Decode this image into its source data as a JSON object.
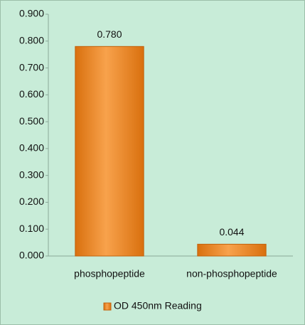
{
  "chart_data": {
    "type": "bar",
    "categories": [
      "phosphopeptide",
      "non-phosphopeptide"
    ],
    "series": [
      {
        "name": "OD 450nm Reading",
        "color": "#f28a1e",
        "values": [
          0.78,
          0.044
        ],
        "value_labels": [
          "0.780",
          "0.044"
        ]
      }
    ],
    "ylim": [
      0,
      0.9
    ],
    "yticks": [
      {
        "value": 0,
        "label": "0.000"
      },
      {
        "value": 0.1,
        "label": "0.100"
      },
      {
        "value": 0.2,
        "label": "0.200"
      },
      {
        "value": 0.3,
        "label": "0.300"
      },
      {
        "value": 0.4,
        "label": "0.400"
      },
      {
        "value": 0.5,
        "label": "0.500"
      },
      {
        "value": 0.6,
        "label": "0.600"
      },
      {
        "value": 0.7,
        "label": "0.700"
      },
      {
        "value": 0.8,
        "label": "0.800"
      },
      {
        "value": 0.9,
        "label": "0.900"
      }
    ],
    "grid": false,
    "legend": "bottom"
  }
}
